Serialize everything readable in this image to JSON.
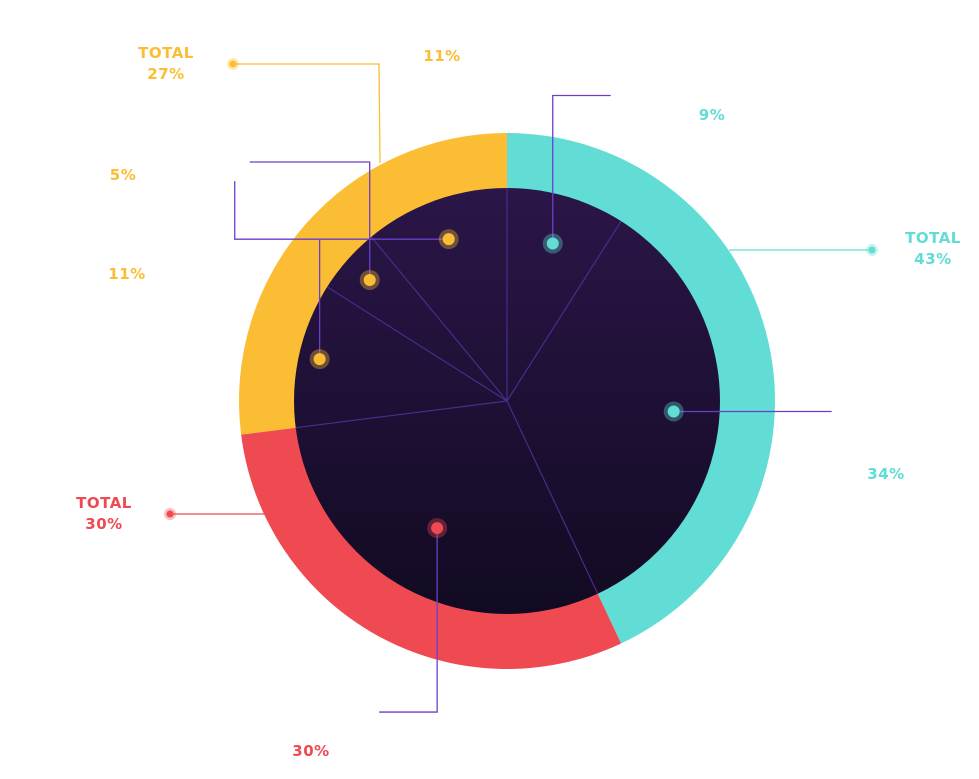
{
  "chart_data": {
    "type": "pie",
    "title": "",
    "groups": [
      {
        "name": "teal",
        "total_label": "TOTAL",
        "total_value": "43%",
        "value": 43,
        "color": "#61DDD6"
      },
      {
        "name": "red",
        "total_label": "TOTAL",
        "total_value": "30%",
        "value": 30,
        "color": "#EF4A51"
      },
      {
        "name": "yellow",
        "total_label": "TOTAL",
        "total_value": "27%",
        "value": 27,
        "color": "#FBBD33"
      }
    ],
    "slices": [
      {
        "group": "teal",
        "value": 9,
        "label": "9%"
      },
      {
        "group": "teal",
        "value": 34,
        "label": "34%"
      },
      {
        "group": "red",
        "value": 30,
        "label": "30%"
      },
      {
        "group": "yellow",
        "value": 11,
        "label": "11%"
      },
      {
        "group": "yellow",
        "value": 5,
        "label": "5%"
      },
      {
        "group": "yellow",
        "value": 11,
        "label": "11%"
      }
    ],
    "colors": {
      "inner_top": "#2A1648",
      "inner_bottom": "#120A22",
      "leader": "#6B3FC8",
      "divider": "#4A2C8A"
    }
  }
}
